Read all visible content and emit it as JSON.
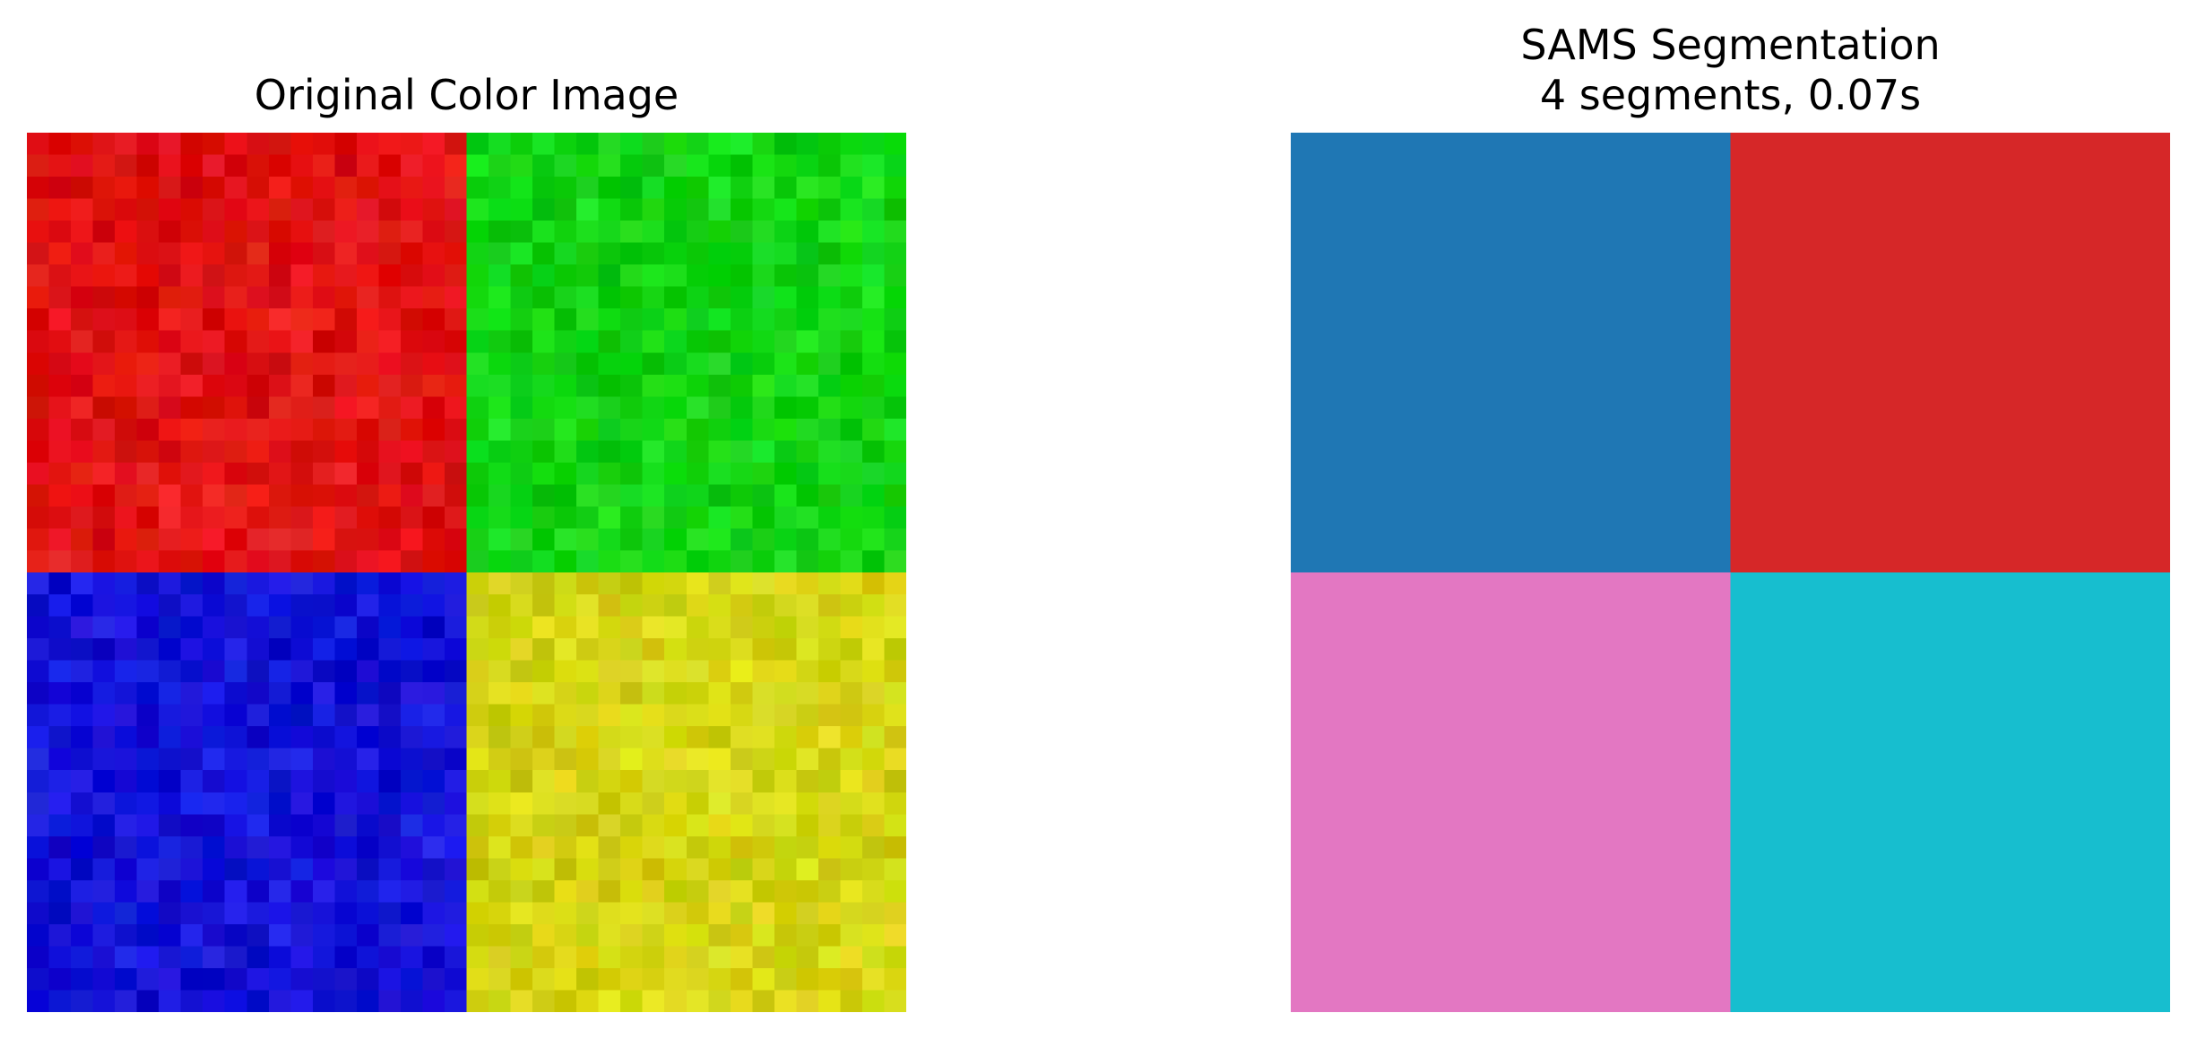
{
  "left_panel": {
    "title": "Original Color Image",
    "grid_cells": 40,
    "noise_seed": 7,
    "quadrant_colors": {
      "top_left": "#e01313",
      "top_right": "#13d413",
      "bottom_left": "#1313d6",
      "bottom_right": "#d4d413"
    }
  },
  "right_panel": {
    "title_line1": "SAMS Segmentation",
    "title_line2": "4 segments, 0.07s",
    "segments": [
      {
        "position": "top-left",
        "color": "#1f77b4"
      },
      {
        "position": "top-right",
        "color": "#d62728"
      },
      {
        "position": "bottom-left",
        "color": "#e377c2"
      },
      {
        "position": "bottom-right",
        "color": "#17becf"
      }
    ]
  }
}
